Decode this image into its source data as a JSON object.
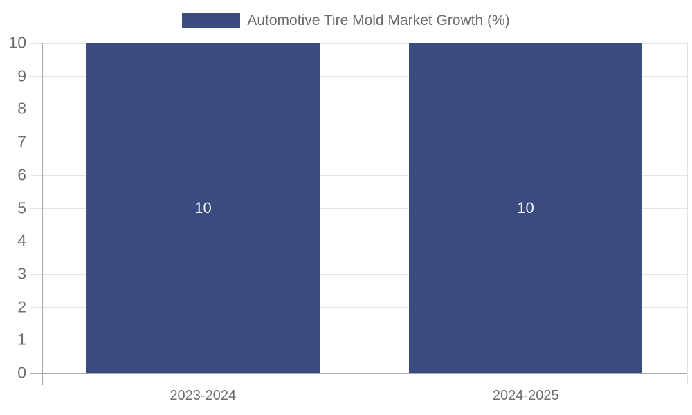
{
  "chart_data": {
    "type": "bar",
    "title": "",
    "categories": [
      "2023-2024",
      "2024-2025"
    ],
    "series": [
      {
        "name": "Automotive Tire Mold Market Growth (%)",
        "values": [
          10,
          10
        ],
        "data_labels": [
          "10",
          "10"
        ]
      }
    ],
    "xlabel": "",
    "ylabel": "",
    "ylim": [
      0,
      10
    ],
    "y_ticks": [
      0,
      1,
      2,
      3,
      4,
      5,
      6,
      7,
      8,
      9,
      10
    ],
    "grid": true,
    "legend_position": "top-center"
  },
  "legend": {
    "label": "Automotive Tire Mold Market Growth (%)"
  },
  "colors": {
    "bar_fill": "#394B7F",
    "bar_value_text": "#f5f5f5",
    "axis_line": "#a9a9a9",
    "grid_line": "#e4e4e4",
    "axis_text": "#6e6e6e",
    "legend_text": "#6b6b6b",
    "background": "#ffffff"
  }
}
